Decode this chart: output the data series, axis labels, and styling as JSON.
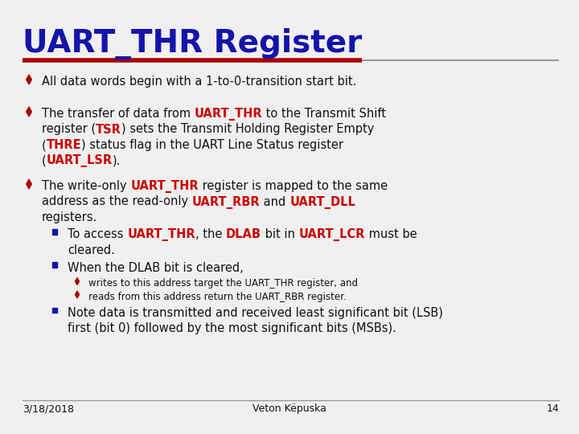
{
  "title": "UART_THR Register",
  "title_color": "#1414aa",
  "title_fontsize": 28,
  "bg_color": "#f0f0f0",
  "red_line_color": "#aa0000",
  "gray_line_color": "#999999",
  "bullet_color": "#aa0000",
  "sub_bullet_color": "#1414aa",
  "blue_text": "#1414aa",
  "red_text": "#cc0000",
  "black_text": "#111111",
  "footer_date": "3/18/2018",
  "footer_name": "Veton Këpuska",
  "footer_page": "14",
  "font_family": "DejaVu Sans",
  "fs_main": 10.5,
  "fs_small": 8.5,
  "fs_title": 28
}
